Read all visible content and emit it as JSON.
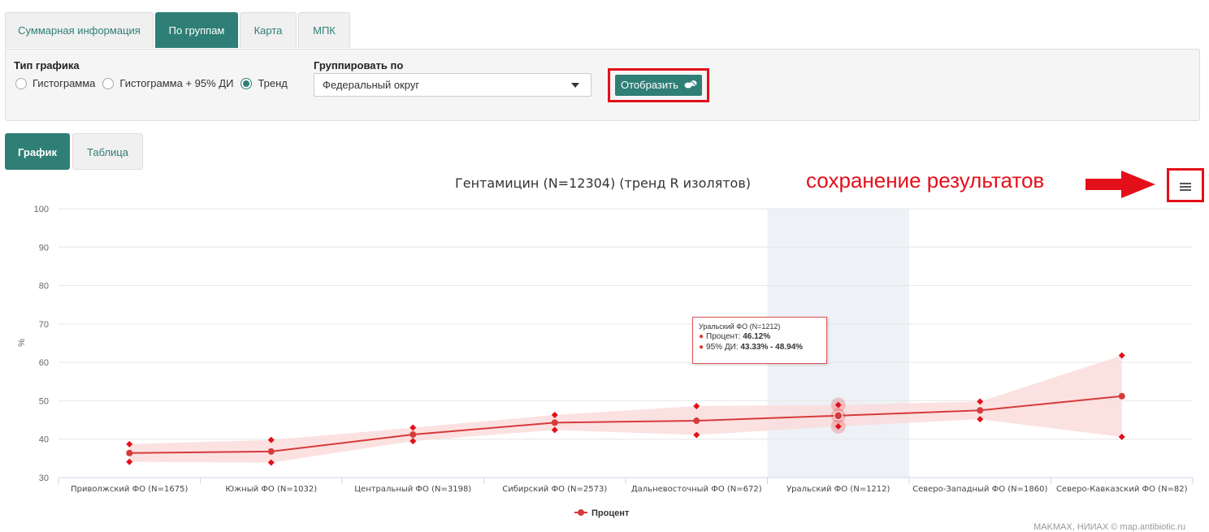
{
  "tabs": [
    "Суммарная информация",
    "По группам",
    "Карта",
    "МПК"
  ],
  "filters": {
    "chart_type_label": "Тип графика",
    "chart_type_options": [
      "Гистограмма",
      "Гистограмма + 95% ДИ",
      "Тренд"
    ],
    "chart_type_selected": "Тренд",
    "group_by_label": "Группировать по",
    "group_by_value": "Федеральный округ",
    "show_button": "Отобразить"
  },
  "view_tabs": [
    "График",
    "Таблица"
  ],
  "annotation": "сохранение результатов",
  "tooltip": {
    "header": "Уральский ФО (N=1212)",
    "percent_label": "Процент:",
    "percent_value": "46.12%",
    "ci_label": "95% ДИ:",
    "ci_value": "43.33% - 48.94%"
  },
  "footer": "MAKMAX, НИИАХ © map.antibiotic.ru",
  "colors": {
    "accent": "#2f7f76",
    "series": "#d63b3b",
    "band": "#fbdcdc",
    "annotation": "#e3101a"
  },
  "chart_data": {
    "type": "line",
    "title": "Гентамицин (N=12304) (тренд R изолятов)",
    "ylabel": "%",
    "ylim": [
      30,
      100
    ],
    "yticks": [
      30,
      40,
      50,
      60,
      70,
      80,
      90,
      100
    ],
    "categories": [
      "Приволжский ФО (N=1675)",
      "Южный ФО (N=1032)",
      "Центральный ФО (N=3198)",
      "Сибирский ФО (N=2573)",
      "Дальневосточный ФО (N=672)",
      "Уральский ФО (N=1212)",
      "Северо-Западный ФО (N=1860)",
      "Северо-Кавказский ФО (N=82)"
    ],
    "highlighted_category": "Уральский ФО (N=1212)",
    "series": [
      {
        "name": "Процент",
        "values": [
          36.4,
          36.8,
          41.2,
          44.3,
          44.8,
          46.12,
          47.5,
          51.2
        ]
      }
    ],
    "ci_low": [
      34.1,
      33.9,
      39.5,
      42.4,
      41.1,
      43.33,
      45.2,
      40.6
    ],
    "ci_high": [
      38.7,
      39.8,
      43.0,
      46.3,
      48.6,
      48.94,
      49.8,
      61.8
    ],
    "legend": "bottom-center",
    "grid": true
  }
}
